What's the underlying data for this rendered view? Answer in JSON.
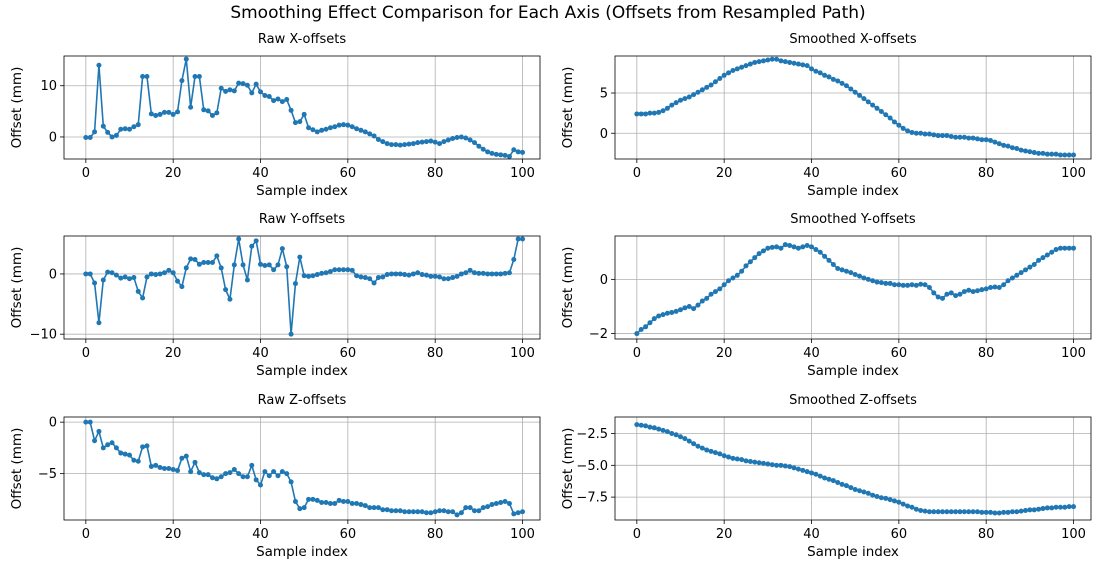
{
  "figure": {
    "title": "Smoothing Effect Comparison for Each Axis (Offsets from Resampled Path)"
  },
  "chart_data": [
    {
      "type": "line",
      "title": "Raw X-offsets",
      "xlabel": "Sample index",
      "ylabel": "Offset (mm)",
      "xlim": [
        -5,
        104
      ],
      "ylim": [
        -4.3,
        15.8
      ],
      "xticks": [
        0,
        20,
        40,
        60,
        80,
        100
      ],
      "yticks": [
        0,
        10
      ],
      "grid": true,
      "series_color": "#1f77b4",
      "x_start": 0,
      "values": [
        -0.1,
        -0.1,
        1.0,
        14.0,
        2.1,
        0.9,
        0.0,
        0.3,
        1.5,
        1.6,
        1.5,
        2.0,
        2.4,
        11.8,
        11.8,
        4.5,
        4.2,
        4.4,
        4.8,
        4.8,
        4.4,
        4.9,
        11.0,
        15.2,
        5.8,
        11.8,
        11.8,
        5.3,
        5.1,
        4.2,
        4.7,
        9.5,
        8.9,
        9.2,
        9.0,
        10.5,
        10.4,
        10.1,
        8.6,
        10.3,
        8.8,
        8.1,
        7.9,
        7.1,
        7.4,
        6.9,
        7.3,
        5.2,
        2.8,
        3.0,
        4.4,
        1.8,
        1.4,
        1.0,
        1.3,
        1.5,
        1.8,
        2.0,
        2.3,
        2.4,
        2.3,
        2.0,
        1.6,
        1.3,
        1.0,
        0.6,
        0.2,
        -0.5,
        -0.9,
        -1.3,
        -1.5,
        -1.5,
        -1.6,
        -1.5,
        -1.4,
        -1.3,
        -1.1,
        -1.0,
        -0.9,
        -0.8,
        -1.0,
        -1.3,
        -0.9,
        -0.6,
        -0.3,
        -0.1,
        0.0,
        -0.2,
        -0.6,
        -1.1,
        -1.8,
        -2.4,
        -2.9,
        -3.2,
        -3.4,
        -3.5,
        -3.6,
        -3.8,
        -2.5,
        -2.9,
        -3.0
      ]
    },
    {
      "type": "line",
      "title": "Smoothed X-offsets",
      "xlabel": "Sample index",
      "ylabel": "Offset (mm)",
      "xlim": [
        -5,
        104
      ],
      "ylim": [
        -3.2,
        9.6
      ],
      "xticks": [
        0,
        20,
        40,
        60,
        80,
        100
      ],
      "yticks": [
        0,
        5
      ],
      "grid": true,
      "series_color": "#1f77b4",
      "x_start": 0,
      "values": [
        2.4,
        2.4,
        2.4,
        2.5,
        2.5,
        2.6,
        2.8,
        3.1,
        3.5,
        3.8,
        4.1,
        4.3,
        4.5,
        4.8,
        5.1,
        5.4,
        5.7,
        6.0,
        6.4,
        6.8,
        7.2,
        7.5,
        7.8,
        8.0,
        8.2,
        8.4,
        8.6,
        8.8,
        8.9,
        9.0,
        9.1,
        9.2,
        9.2,
        9.0,
        8.9,
        8.8,
        8.7,
        8.6,
        8.5,
        8.4,
        8.0,
        7.7,
        7.5,
        7.2,
        7.0,
        6.7,
        6.5,
        6.2,
        5.9,
        5.5,
        5.1,
        4.7,
        4.3,
        3.9,
        3.5,
        3.1,
        2.7,
        2.3,
        1.9,
        1.4,
        1.0,
        0.6,
        0.3,
        0.1,
        0.0,
        0.0,
        -0.1,
        -0.1,
        -0.2,
        -0.3,
        -0.3,
        -0.3,
        -0.4,
        -0.5,
        -0.5,
        -0.5,
        -0.6,
        -0.6,
        -0.7,
        -0.8,
        -0.8,
        -0.9,
        -1.1,
        -1.3,
        -1.5,
        -1.6,
        -1.8,
        -1.9,
        -2.1,
        -2.2,
        -2.3,
        -2.4,
        -2.5,
        -2.5,
        -2.6,
        -2.6,
        -2.6,
        -2.7,
        -2.7,
        -2.7,
        -2.7
      ]
    },
    {
      "type": "line",
      "title": "Raw Y-offsets",
      "xlabel": "Sample index",
      "ylabel": "Offset (mm)",
      "xlim": [
        -5,
        104
      ],
      "ylim": [
        -10.8,
        6.3
      ],
      "xticks": [
        0,
        20,
        40,
        60,
        80,
        100
      ],
      "yticks": [
        -10,
        0
      ],
      "grid": true,
      "series_color": "#1f77b4",
      "x_start": 0,
      "values": [
        0.0,
        0.0,
        -1.5,
        -8.1,
        -1.0,
        0.3,
        0.2,
        -0.2,
        -0.7,
        -0.5,
        -0.8,
        -0.6,
        -2.9,
        -4.0,
        -0.5,
        0.0,
        -0.1,
        0.0,
        0.2,
        0.6,
        0.2,
        -1.2,
        -2.1,
        1.0,
        2.5,
        2.4,
        1.6,
        1.9,
        1.9,
        1.9,
        3.0,
        1.0,
        -2.6,
        -4.2,
        1.5,
        5.8,
        1.5,
        -1.0,
        4.6,
        5.5,
        1.6,
        1.4,
        1.5,
        0.7,
        1.5,
        4.2,
        1.2,
        -10.0,
        -1.6,
        2.8,
        -0.3,
        -0.4,
        -0.3,
        -0.1,
        0.1,
        0.2,
        0.4,
        0.7,
        0.7,
        0.7,
        0.7,
        0.6,
        -0.3,
        -0.5,
        -0.6,
        -0.8,
        -1.5,
        -0.6,
        -0.5,
        -0.1,
        0.0,
        0.0,
        0.0,
        -0.1,
        -0.2,
        0.0,
        0.2,
        -0.1,
        -0.2,
        -0.4,
        -0.4,
        -0.5,
        -0.8,
        -0.8,
        -0.6,
        -0.4,
        0.0,
        0.2,
        0.6,
        0.2,
        0.1,
        0.1,
        0.0,
        0.0,
        0.0,
        0.0,
        0.1,
        0.2,
        2.4,
        5.8,
        5.8
      ]
    },
    {
      "type": "line",
      "title": "Smoothed Y-offsets",
      "xlabel": "Sample index",
      "ylabel": "Offset (mm)",
      "xlim": [
        -5,
        104
      ],
      "ylim": [
        -2.2,
        1.6
      ],
      "xticks": [
        0,
        20,
        40,
        60,
        80,
        100
      ],
      "yticks": [
        -2,
        0
      ],
      "grid": true,
      "series_color": "#1f77b4",
      "x_start": 0,
      "values": [
        -2.0,
        -1.85,
        -1.75,
        -1.6,
        -1.45,
        -1.35,
        -1.3,
        -1.25,
        -1.22,
        -1.18,
        -1.12,
        -1.05,
        -1.0,
        -1.08,
        -0.95,
        -0.8,
        -0.7,
        -0.55,
        -0.45,
        -0.35,
        -0.2,
        -0.05,
        0.05,
        0.15,
        0.3,
        0.5,
        0.65,
        0.8,
        0.95,
        1.05,
        1.15,
        1.18,
        1.2,
        1.15,
        1.28,
        1.25,
        1.2,
        1.15,
        1.2,
        1.25,
        1.2,
        1.1,
        1.0,
        0.85,
        0.7,
        0.55,
        0.4,
        0.35,
        0.3,
        0.25,
        0.18,
        0.12,
        0.05,
        0.0,
        -0.05,
        -0.1,
        -0.12,
        -0.15,
        -0.15,
        -0.2,
        -0.2,
        -0.22,
        -0.22,
        -0.2,
        -0.22,
        -0.18,
        -0.2,
        -0.3,
        -0.5,
        -0.65,
        -0.7,
        -0.55,
        -0.5,
        -0.6,
        -0.55,
        -0.45,
        -0.4,
        -0.45,
        -0.42,
        -0.38,
        -0.35,
        -0.3,
        -0.28,
        -0.3,
        -0.2,
        -0.05,
        0.05,
        0.15,
        0.25,
        0.35,
        0.45,
        0.55,
        0.7,
        0.8,
        0.9,
        1.0,
        1.1,
        1.15,
        1.15,
        1.15,
        1.15
      ]
    },
    {
      "type": "line",
      "title": "Raw Z-offsets",
      "xlabel": "Sample index",
      "ylabel": "Offset (mm)",
      "xlim": [
        -5,
        104
      ],
      "ylim": [
        -9.5,
        0.5
      ],
      "xticks": [
        0,
        20,
        40,
        60,
        80,
        100
      ],
      "yticks": [
        -5,
        0
      ],
      "grid": true,
      "series_color": "#1f77b4",
      "x_start": 0,
      "values": [
        0.0,
        0.0,
        -1.8,
        -0.9,
        -2.5,
        -2.2,
        -2.0,
        -2.5,
        -3.0,
        -3.1,
        -3.2,
        -3.7,
        -3.8,
        -2.4,
        -2.3,
        -4.3,
        -4.2,
        -4.4,
        -4.5,
        -4.5,
        -4.6,
        -4.7,
        -3.5,
        -3.3,
        -4.8,
        -3.9,
        -4.9,
        -5.1,
        -5.1,
        -5.4,
        -5.5,
        -5.3,
        -5.0,
        -4.9,
        -4.6,
        -5.0,
        -5.3,
        -5.3,
        -4.2,
        -5.6,
        -6.1,
        -4.8,
        -5.2,
        -4.8,
        -5.2,
        -4.8,
        -5.0,
        -5.8,
        -7.7,
        -8.4,
        -8.3,
        -7.5,
        -7.5,
        -7.6,
        -7.8,
        -7.8,
        -7.9,
        -7.9,
        -7.6,
        -7.7,
        -7.7,
        -7.9,
        -7.9,
        -8.0,
        -8.1,
        -8.3,
        -8.3,
        -8.3,
        -8.5,
        -8.5,
        -8.6,
        -8.6,
        -8.6,
        -8.7,
        -8.7,
        -8.7,
        -8.7,
        -8.7,
        -8.8,
        -8.8,
        -8.7,
        -8.6,
        -8.6,
        -8.7,
        -8.7,
        -9.0,
        -8.8,
        -8.3,
        -8.3,
        -8.6,
        -8.6,
        -8.3,
        -8.2,
        -8.0,
        -7.9,
        -7.8,
        -7.7,
        -7.9,
        -8.9,
        -8.8,
        -8.7
      ]
    },
    {
      "type": "line",
      "title": "Smoothed Z-offsets",
      "xlabel": "Sample index",
      "ylabel": "Offset (mm)",
      "xlim": [
        -5,
        104
      ],
      "ylim": [
        -9.3,
        -1.2
      ],
      "xticks": [
        0,
        20,
        40,
        60,
        80,
        100
      ],
      "yticks": [
        -7.5,
        -5.0,
        -2.5
      ],
      "grid": true,
      "series_color": "#1f77b4",
      "x_start": 0,
      "values": [
        -1.8,
        -1.85,
        -1.9,
        -2.0,
        -2.05,
        -2.15,
        -2.25,
        -2.35,
        -2.5,
        -2.6,
        -2.75,
        -2.9,
        -3.1,
        -3.3,
        -3.5,
        -3.65,
        -3.8,
        -3.9,
        -4.0,
        -4.1,
        -4.25,
        -4.35,
        -4.45,
        -4.5,
        -4.55,
        -4.65,
        -4.7,
        -4.75,
        -4.8,
        -4.85,
        -4.9,
        -4.95,
        -5.0,
        -5.0,
        -5.05,
        -5.1,
        -5.2,
        -5.3,
        -5.4,
        -5.5,
        -5.6,
        -5.7,
        -5.85,
        -6.0,
        -6.1,
        -6.2,
        -6.35,
        -6.5,
        -6.6,
        -6.75,
        -6.9,
        -7.0,
        -7.1,
        -7.2,
        -7.35,
        -7.45,
        -7.55,
        -7.6,
        -7.7,
        -7.8,
        -7.9,
        -8.05,
        -8.2,
        -8.3,
        -8.45,
        -8.55,
        -8.6,
        -8.65,
        -8.65,
        -8.65,
        -8.65,
        -8.65,
        -8.65,
        -8.65,
        -8.65,
        -8.65,
        -8.65,
        -8.65,
        -8.65,
        -8.7,
        -8.7,
        -8.7,
        -8.75,
        -8.75,
        -8.7,
        -8.7,
        -8.65,
        -8.65,
        -8.6,
        -8.55,
        -8.5,
        -8.5,
        -8.45,
        -8.4,
        -8.35,
        -8.35,
        -8.3,
        -8.3,
        -8.3,
        -8.25,
        -8.25
      ]
    }
  ]
}
